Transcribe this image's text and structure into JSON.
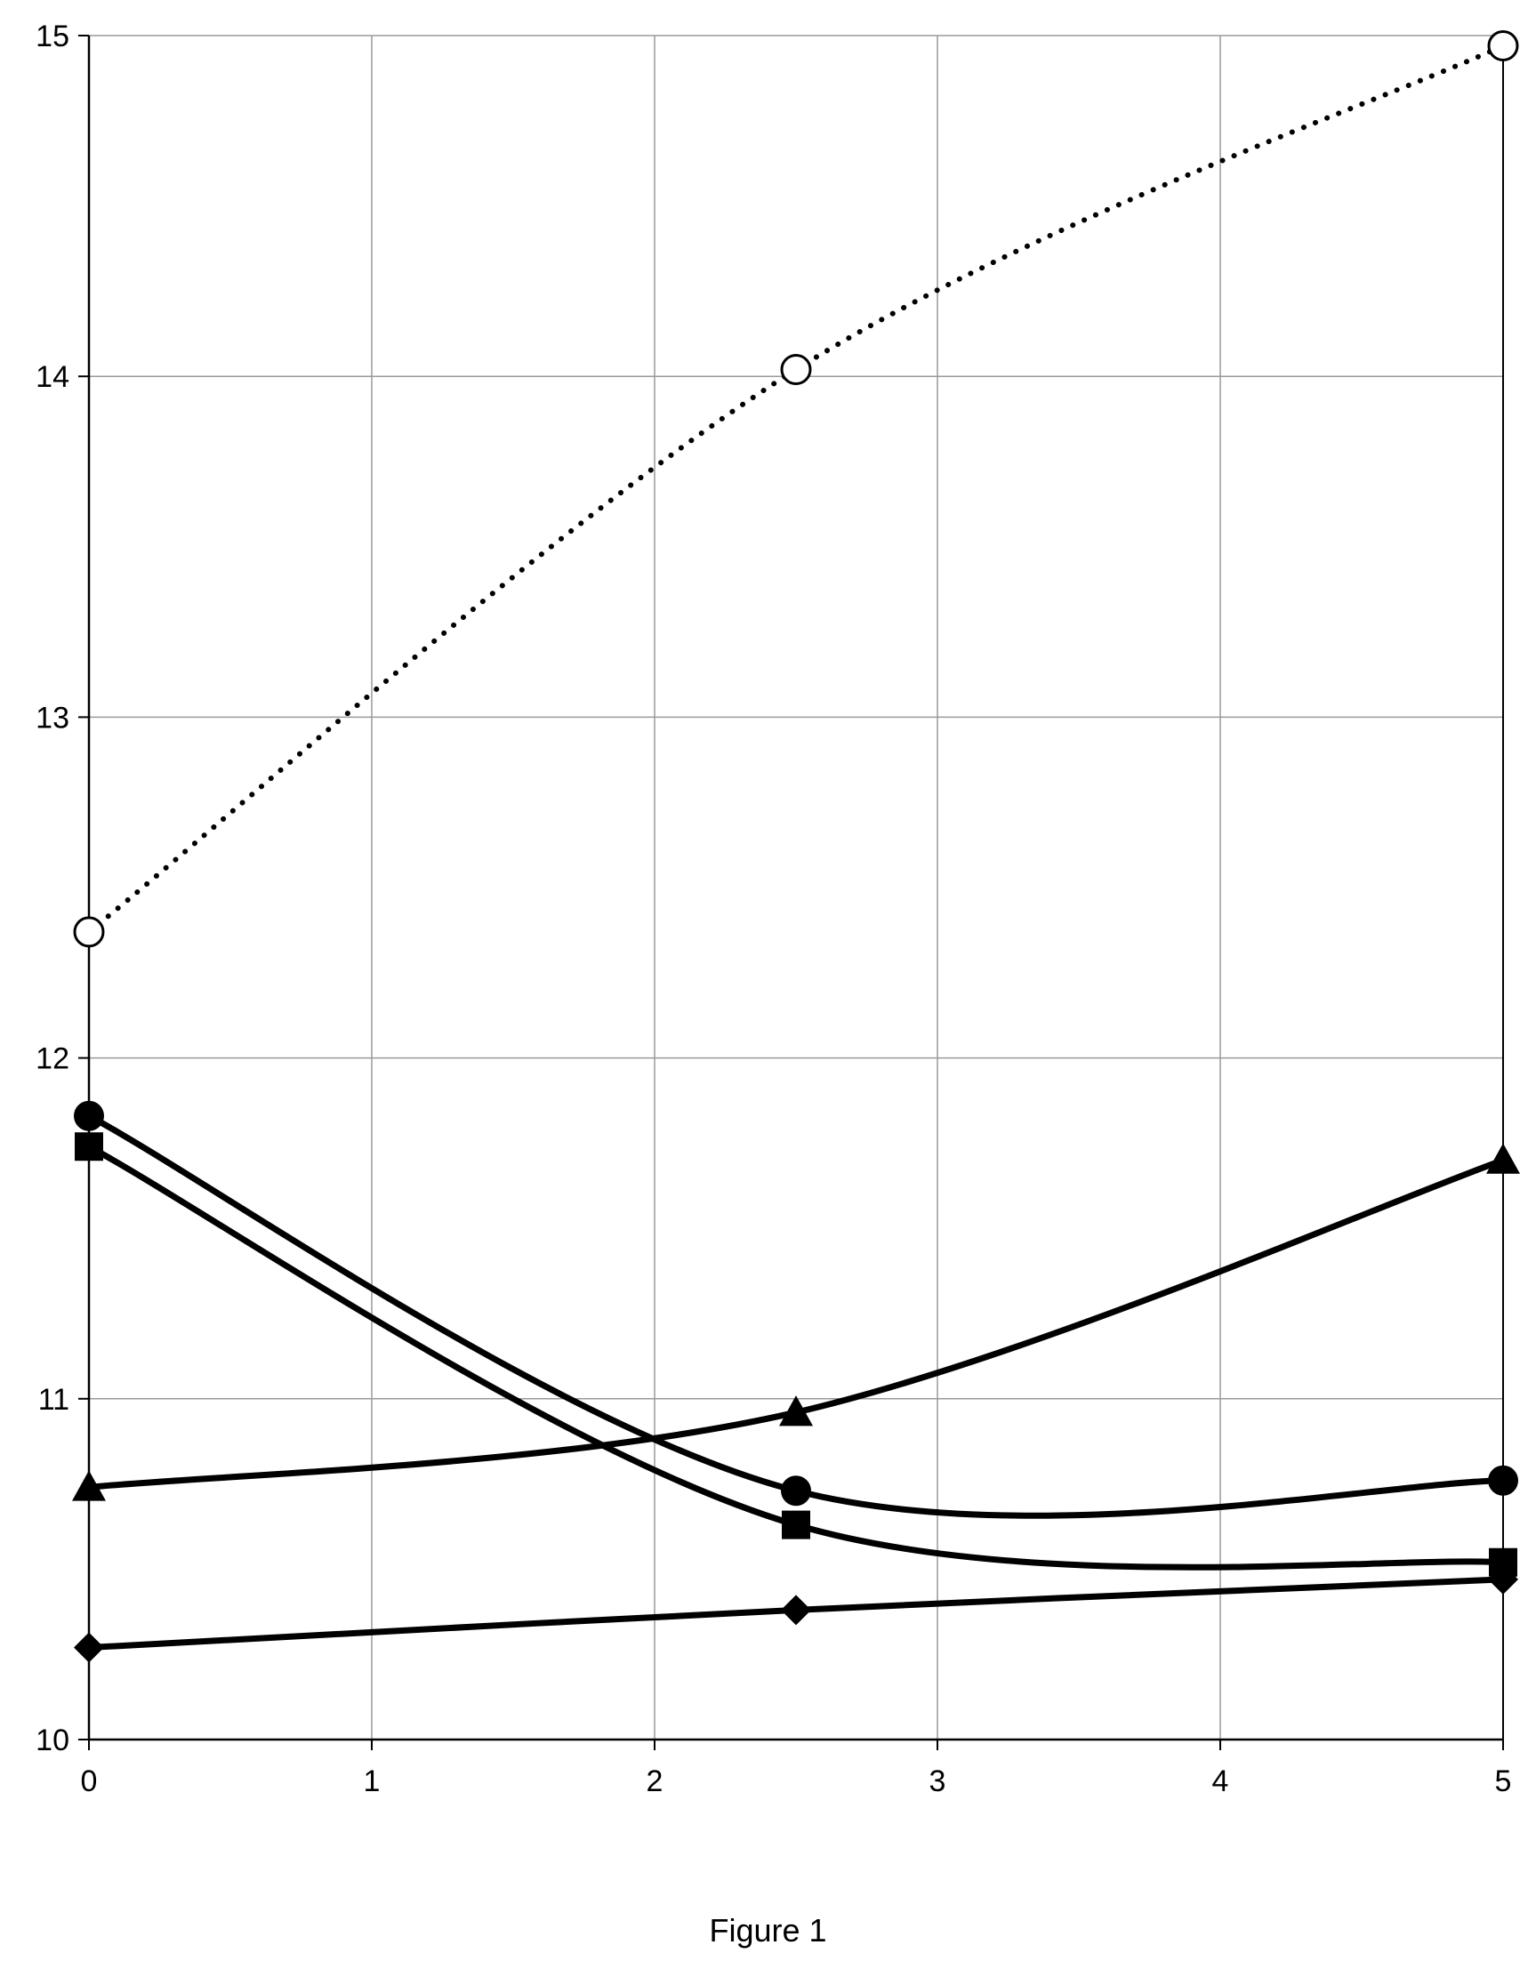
{
  "caption": "Figure 1",
  "chart_data": {
    "type": "line",
    "title": "",
    "xlabel": "",
    "ylabel": "",
    "xlim": [
      0,
      5
    ],
    "ylim": [
      10,
      15
    ],
    "x_ticks": [
      0,
      1,
      2,
      3,
      4,
      5
    ],
    "y_ticks": [
      10,
      11,
      12,
      13,
      14,
      15
    ],
    "x_tick_labels": [
      "0",
      "1",
      "2",
      "3",
      "4",
      "5"
    ],
    "y_tick_labels": [
      "10",
      "11",
      "12",
      "13",
      "14",
      "15"
    ],
    "grid": true,
    "legend": "none",
    "series": [
      {
        "marker": "open-circle",
        "line": "dotted",
        "x": [
          0,
          2.5,
          5
        ],
        "y": [
          12.37,
          14.02,
          14.97
        ]
      },
      {
        "marker": "circle",
        "line": "solid",
        "x": [
          0,
          2.5,
          5
        ],
        "y": [
          11.83,
          10.73,
          10.76
        ]
      },
      {
        "marker": "square",
        "line": "solid",
        "x": [
          0,
          2.5,
          5
        ],
        "y": [
          11.74,
          10.63,
          10.52
        ]
      },
      {
        "marker": "triangle",
        "line": "solid",
        "x": [
          0,
          2.5,
          5
        ],
        "y": [
          10.74,
          10.96,
          11.7
        ]
      },
      {
        "marker": "diamond",
        "line": "solid",
        "x": [
          0,
          2.5,
          5
        ],
        "y": [
          10.27,
          10.38,
          10.47
        ]
      }
    ]
  }
}
